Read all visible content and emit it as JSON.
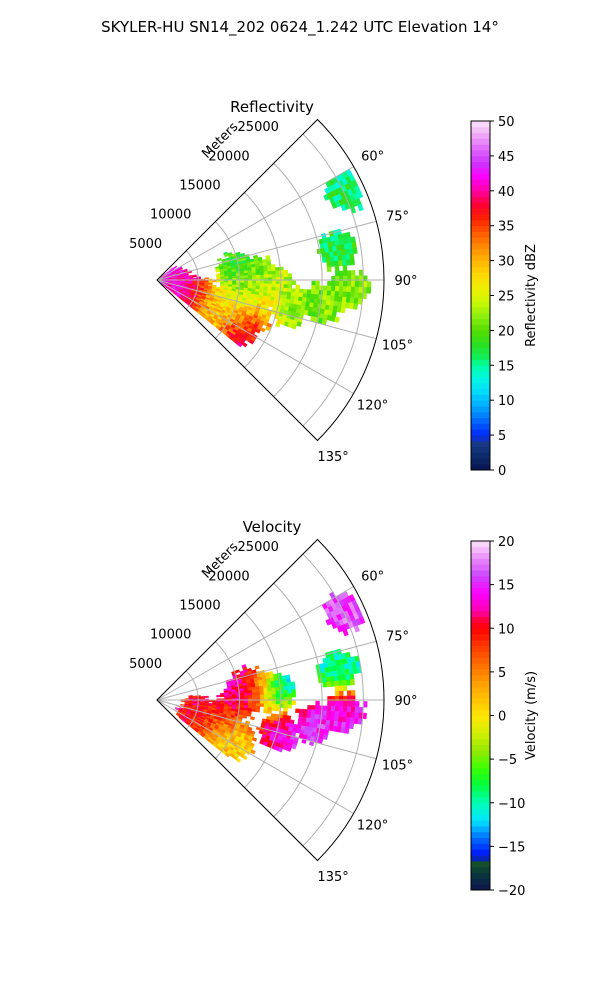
{
  "suptitle": "SKYLER-HU  SN14_202  0624_1.242 UTC Elevation 14°",
  "panels": [
    {
      "title": "Reflectivity",
      "range_axis_label": "Meters",
      "range_ticks": [
        "5000",
        "10000",
        "15000",
        "20000",
        "25000"
      ],
      "azimuth_ticks": [
        "60°",
        "75°",
        "90°",
        "105°",
        "120°",
        "135°"
      ],
      "colorbar": {
        "label": "Reflectivity dBZ",
        "ticks": [
          "0",
          "5",
          "10",
          "15",
          "20",
          "25",
          "30",
          "35",
          "40",
          "45",
          "50"
        ],
        "min": 0,
        "max": 50
      }
    },
    {
      "title": "Velocity",
      "range_axis_label": "Meters",
      "range_ticks": [
        "5000",
        "10000",
        "15000",
        "20000",
        "25000"
      ],
      "azimuth_ticks": [
        "60°",
        "75°",
        "90°",
        "105°",
        "120°",
        "135°"
      ],
      "colorbar": {
        "label": "Velocity (m/s)",
        "ticks": [
          "−20",
          "−15",
          "−10",
          "−5",
          "0",
          "5",
          "10",
          "15",
          "20"
        ],
        "min": -20,
        "max": 20
      }
    }
  ],
  "chart_data": [
    {
      "type": "heatmap",
      "title": "Reflectivity",
      "projection": "polar sector",
      "azimuth_range_deg": [
        45,
        135
      ],
      "range_max_m": 27500,
      "range_ticks_m": [
        5000,
        10000,
        15000,
        20000,
        25000
      ],
      "azimuth_ticks_deg": [
        60,
        75,
        90,
        105,
        120,
        135
      ],
      "grid": true,
      "colorbar_range": [
        0,
        50
      ],
      "colorbar_label": "Reflectivity dBZ",
      "echo_regions": [
        {
          "az": 115,
          "r": 2600,
          "val": 42
        },
        {
          "az": 112,
          "r": 5500,
          "val": 38
        },
        {
          "az": 120,
          "r": 7500,
          "val": 26
        },
        {
          "az": 108,
          "r": 9000,
          "val": 24
        },
        {
          "az": 97,
          "r": 11000,
          "val": 22
        },
        {
          "az": 92,
          "r": 14000,
          "val": 25
        },
        {
          "az": 88,
          "r": 12000,
          "val": 20
        },
        {
          "az": 84,
          "r": 9500,
          "val": 18
        },
        {
          "az": 100,
          "r": 16000,
          "val": 22
        },
        {
          "az": 97,
          "r": 20000,
          "val": 21
        },
        {
          "az": 92,
          "r": 23000,
          "val": 22
        },
        {
          "az": 80,
          "r": 22000,
          "val": 17
        },
        {
          "az": 64,
          "r": 25000,
          "val": 16
        },
        {
          "az": 108,
          "r": 12000,
          "val": 35
        },
        {
          "az": 120,
          "r": 11000,
          "val": 40
        }
      ]
    },
    {
      "type": "heatmap",
      "title": "Velocity",
      "projection": "polar sector",
      "azimuth_range_deg": [
        45,
        135
      ],
      "range_max_m": 27500,
      "range_ticks_m": [
        5000,
        10000,
        15000,
        20000,
        25000
      ],
      "azimuth_ticks_deg": [
        60,
        75,
        90,
        105,
        120,
        135
      ],
      "grid": true,
      "colorbar_range": [
        -20,
        20
      ],
      "colorbar_label": "Velocity (m/s)",
      "echo_regions": [
        {
          "az": 112,
          "r": 5000,
          "val": 10
        },
        {
          "az": 104,
          "r": 8000,
          "val": 9
        },
        {
          "az": 122,
          "r": 9000,
          "val": 2
        },
        {
          "az": 116,
          "r": 10500,
          "val": 0
        },
        {
          "az": 88,
          "r": 10000,
          "val": 13
        },
        {
          "az": 82,
          "r": 11000,
          "val": 12
        },
        {
          "az": 86,
          "r": 14000,
          "val": -12
        },
        {
          "az": 104,
          "r": 15000,
          "val": 14
        },
        {
          "az": 98,
          "r": 19000,
          "val": 15
        },
        {
          "az": 93,
          "r": 22500,
          "val": 14
        },
        {
          "az": 80,
          "r": 22000,
          "val": -10
        },
        {
          "az": 64,
          "r": 25000,
          "val": 16
        }
      ]
    }
  ]
}
